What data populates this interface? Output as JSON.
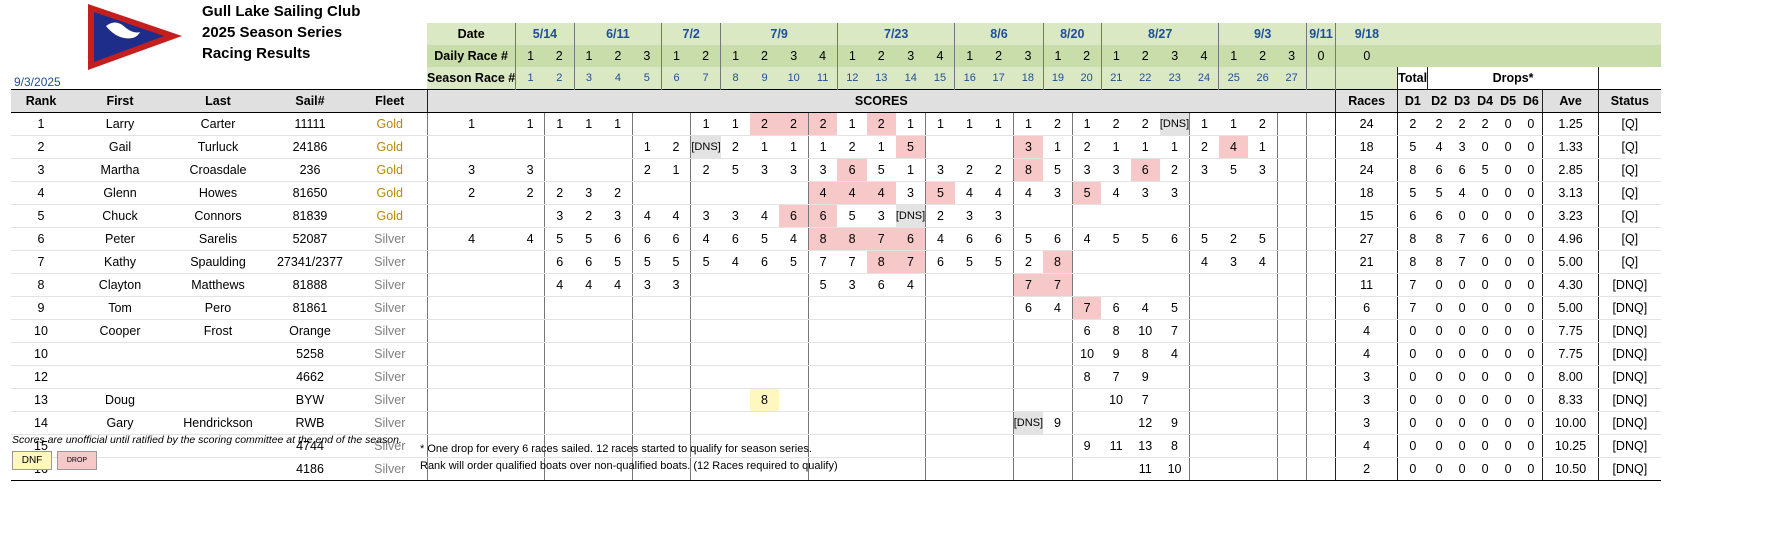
{
  "header": {
    "club_name": "Gull Lake Sailing Club",
    "series_title": "2025 Season Series",
    "subtitle": "Racing Results",
    "as_of_date": "9/3/2025"
  },
  "colors": {
    "drop": "#f6c8c8",
    "dnf": "#fff6c0",
    "header_green": "#dbe8c4",
    "gold": "#b8860b",
    "silver": "#808080"
  },
  "schedule": {
    "date_label": "Date",
    "daily_race_label": "Daily Race #",
    "season_race_label": "Season Race #",
    "dates": [
      {
        "date": "5/14",
        "races": 2
      },
      {
        "date": "6/11",
        "races": 3
      },
      {
        "date": "7/2",
        "races": 2
      },
      {
        "date": "7/9",
        "races": 4
      },
      {
        "date": "7/23",
        "races": 4
      },
      {
        "date": "8/6",
        "races": 3
      },
      {
        "date": "8/20",
        "races": 2
      },
      {
        "date": "8/27",
        "races": 4
      },
      {
        "date": "9/3",
        "races": 3
      },
      {
        "date": "9/11",
        "races": 1,
        "daily_label": "0"
      },
      {
        "date": "9/18",
        "races": 1,
        "daily_label": "0"
      }
    ],
    "season_numbers": [
      "1",
      "2",
      "3",
      "4",
      "5",
      "6",
      "7",
      "8",
      "9",
      "10",
      "11",
      "12",
      "13",
      "14",
      "15",
      "16",
      "17",
      "18",
      "19",
      "20",
      "21",
      "22",
      "23",
      "24",
      "25",
      "26",
      "27"
    ]
  },
  "columns": {
    "rank": "Rank",
    "first": "First",
    "last": "Last",
    "sail": "Sail#",
    "fleet": "Fleet",
    "scores": "SCORES",
    "total_top": "Total",
    "total_bottom": "Races",
    "drops_title": "Drops*",
    "drops": [
      "D1",
      "D2",
      "D3",
      "D4",
      "D5",
      "D6"
    ],
    "ave": "Ave",
    "status": "Status"
  },
  "rows": [
    {
      "rank": "1",
      "first": "Larry",
      "last": "Carter",
      "sail": "11111",
      "fleet": "Gold",
      "races": [
        "1",
        "1",
        "1",
        "1",
        "1",
        "",
        "",
        "1",
        "1",
        "2",
        "2",
        "2",
        "1",
        "2",
        "1",
        "1",
        "1",
        "1",
        "1",
        "2",
        "1",
        "2",
        "2",
        "[DNS]",
        "1",
        "1",
        "2",
        "",
        ""
      ],
      "drops_idx": [
        9,
        10,
        11,
        13
      ],
      "dns_idx": [
        23
      ],
      "dnf_idx": [],
      "total": "24",
      "d": [
        "2",
        "2",
        "2",
        "2",
        "0",
        "0"
      ],
      "ave": "1.25",
      "status": "[Q]"
    },
    {
      "rank": "2",
      "first": "Gail",
      "last": "Turluck",
      "sail": "24186",
      "fleet": "Gold",
      "races": [
        "",
        "",
        "",
        "",
        "",
        "1",
        "2",
        "[DNS]",
        "2",
        "1",
        "1",
        "1",
        "2",
        "1",
        "5",
        "",
        "",
        "",
        "3",
        "1",
        "2",
        "1",
        "1",
        "1",
        "2",
        "4",
        "1",
        "",
        ""
      ],
      "drops_idx": [
        14,
        18,
        25
      ],
      "dns_idx": [
        7
      ],
      "dnf_idx": [],
      "total": "18",
      "d": [
        "5",
        "4",
        "3",
        "0",
        "0",
        "0"
      ],
      "ave": "1.33",
      "status": "[Q]"
    },
    {
      "rank": "3",
      "first": "Martha",
      "last": "Croasdale",
      "sail": "236",
      "fleet": "Gold",
      "races": [
        "3",
        "3",
        "",
        "",
        "",
        "2",
        "1",
        "2",
        "5",
        "3",
        "3",
        "3",
        "6",
        "5",
        "1",
        "3",
        "2",
        "2",
        "8",
        "5",
        "3",
        "3",
        "6",
        "2",
        "3",
        "5",
        "3",
        "",
        ""
      ],
      "drops_idx": [
        12,
        18,
        22
      ],
      "dns_idx": [],
      "dnf_idx": [],
      "total": "24",
      "d": [
        "8",
        "6",
        "6",
        "5",
        "0",
        "0"
      ],
      "ave": "2.85",
      "status": "[Q]"
    },
    {
      "rank": "4",
      "first": "Glenn",
      "last": "Howes",
      "sail": "81650",
      "fleet": "Gold",
      "races": [
        "2",
        "2",
        "2",
        "3",
        "2",
        "",
        "",
        "",
        "",
        "",
        "",
        "4",
        "4",
        "4",
        "3",
        "5",
        "4",
        "4",
        "4",
        "3",
        "5",
        "4",
        "3",
        "3",
        "",
        "",
        "",
        "",
        ""
      ],
      "drops_idx": [
        11,
        12,
        13,
        15,
        20
      ],
      "dns_idx": [],
      "dnf_idx": [],
      "total": "18",
      "d": [
        "5",
        "5",
        "4",
        "0",
        "0",
        "0"
      ],
      "ave": "3.13",
      "status": "[Q]"
    },
    {
      "rank": "5",
      "first": "Chuck",
      "last": "Connors",
      "sail": "81839",
      "fleet": "Gold",
      "races": [
        "",
        "",
        "3",
        "2",
        "3",
        "4",
        "4",
        "3",
        "3",
        "4",
        "6",
        "6",
        "5",
        "3",
        "[DNS]",
        "2",
        "3",
        "3",
        "",
        "",
        "",
        "",
        "",
        "",
        "",
        "",
        "",
        "",
        ""
      ],
      "drops_idx": [
        10,
        11
      ],
      "dns_idx": [
        14
      ],
      "dnf_idx": [],
      "total": "15",
      "d": [
        "6",
        "6",
        "0",
        "0",
        "0",
        "0"
      ],
      "ave": "3.23",
      "status": "[Q]"
    },
    {
      "rank": "6",
      "first": "Peter",
      "last": "Sarelis",
      "sail": "52087",
      "fleet": "Silver",
      "races": [
        "4",
        "4",
        "5",
        "5",
        "6",
        "6",
        "6",
        "4",
        "6",
        "5",
        "4",
        "8",
        "8",
        "7",
        "6",
        "4",
        "6",
        "6",
        "5",
        "6",
        "4",
        "5",
        "5",
        "6",
        "5",
        "2",
        "5",
        "",
        ""
      ],
      "drops_idx": [
        11,
        12,
        13,
        14
      ],
      "dns_idx": [],
      "dnf_idx": [],
      "total": "27",
      "d": [
        "8",
        "8",
        "7",
        "6",
        "0",
        "0"
      ],
      "ave": "4.96",
      "status": "[Q]"
    },
    {
      "rank": "7",
      "first": "Kathy",
      "last": "Spaulding",
      "sail": "27341/2377",
      "fleet": "Silver",
      "races": [
        "",
        "",
        "6",
        "6",
        "5",
        "5",
        "5",
        "5",
        "4",
        "6",
        "5",
        "7",
        "7",
        "8",
        "7",
        "6",
        "5",
        "5",
        "2",
        "8",
        "",
        "",
        "",
        "",
        "4",
        "3",
        "4",
        "",
        ""
      ],
      "drops_idx": [
        13,
        14,
        19
      ],
      "dns_idx": [],
      "dnf_idx": [],
      "total": "21",
      "d": [
        "8",
        "8",
        "7",
        "0",
        "0",
        "0"
      ],
      "ave": "5.00",
      "status": "[Q]"
    },
    {
      "rank": "8",
      "first": "Clayton",
      "last": "Matthews",
      "sail": "81888",
      "fleet": "Silver",
      "races": [
        "",
        "",
        "4",
        "4",
        "4",
        "3",
        "3",
        "",
        "",
        "",
        "",
        "5",
        "3",
        "6",
        "4",
        "",
        "",
        "",
        "7",
        "7",
        "",
        "",
        "",
        "",
        "",
        "",
        "",
        "",
        ""
      ],
      "drops_idx": [
        18,
        19
      ],
      "dns_idx": [],
      "dnf_idx": [],
      "total": "11",
      "d": [
        "7",
        "0",
        "0",
        "0",
        "0",
        "0"
      ],
      "ave": "4.30",
      "status": "[DNQ]"
    },
    {
      "rank": "9",
      "first": "Tom",
      "last": "Pero",
      "sail": "81861",
      "fleet": "Silver",
      "races": [
        "",
        "",
        "",
        "",
        "",
        "",
        "",
        "",
        "",
        "",
        "",
        "",
        "",
        "",
        "",
        "",
        "",
        "",
        "6",
        "4",
        "7",
        "6",
        "4",
        "5",
        "",
        "",
        "",
        "",
        ""
      ],
      "drops_idx": [
        20
      ],
      "dns_idx": [],
      "dnf_idx": [],
      "total": "6",
      "d": [
        "7",
        "0",
        "0",
        "0",
        "0",
        "0"
      ],
      "ave": "5.00",
      "status": "[DNQ]"
    },
    {
      "rank": "10",
      "first": "Cooper",
      "last": "Frost",
      "sail": "Orange",
      "fleet": "Silver",
      "races": [
        "",
        "",
        "",
        "",
        "",
        "",
        "",
        "",
        "",
        "",
        "",
        "",
        "",
        "",
        "",
        "",
        "",
        "",
        "",
        "",
        "6",
        "8",
        "10",
        "7",
        "",
        "",
        "",
        "",
        ""
      ],
      "drops_idx": [],
      "dns_idx": [],
      "dnf_idx": [],
      "total": "4",
      "d": [
        "0",
        "0",
        "0",
        "0",
        "0",
        "0"
      ],
      "ave": "7.75",
      "status": "[DNQ]"
    },
    {
      "rank": "10",
      "first": "",
      "last": "",
      "sail": "5258",
      "fleet": "Silver",
      "races": [
        "",
        "",
        "",
        "",
        "",
        "",
        "",
        "",
        "",
        "",
        "",
        "",
        "",
        "",
        "",
        "",
        "",
        "",
        "",
        "",
        "10",
        "9",
        "8",
        "4",
        "",
        "",
        "",
        "",
        ""
      ],
      "drops_idx": [],
      "dns_idx": [],
      "dnf_idx": [],
      "total": "4",
      "d": [
        "0",
        "0",
        "0",
        "0",
        "0",
        "0"
      ],
      "ave": "7.75",
      "status": "[DNQ]"
    },
    {
      "rank": "12",
      "first": "",
      "last": "",
      "sail": "4662",
      "fleet": "Silver",
      "races": [
        "",
        "",
        "",
        "",
        "",
        "",
        "",
        "",
        "",
        "",
        "",
        "",
        "",
        "",
        "",
        "",
        "",
        "",
        "",
        "",
        "8",
        "7",
        "9",
        "",
        "",
        "",
        "",
        "",
        ""
      ],
      "drops_idx": [],
      "dns_idx": [],
      "dnf_idx": [],
      "total": "3",
      "d": [
        "0",
        "0",
        "0",
        "0",
        "0",
        "0"
      ],
      "ave": "8.00",
      "status": "[DNQ]"
    },
    {
      "rank": "13",
      "first": "Doug",
      "last": "",
      "sail": "BYW",
      "fleet": "Silver",
      "races": [
        "",
        "",
        "",
        "",
        "",
        "",
        "",
        "",
        "",
        "8",
        "",
        "",
        "",
        "",
        "",
        "",
        "",
        "",
        "",
        "",
        "",
        "10",
        "7",
        "",
        "",
        "",
        "",
        "",
        ""
      ],
      "drops_idx": [],
      "dns_idx": [],
      "dnf_idx": [
        9
      ],
      "total": "3",
      "d": [
        "0",
        "0",
        "0",
        "0",
        "0",
        "0"
      ],
      "ave": "8.33",
      "status": "[DNQ]"
    },
    {
      "rank": "14",
      "first": "Gary",
      "last": "Hendrickson",
      "sail": "RWB",
      "fleet": "Silver",
      "races": [
        "",
        "",
        "",
        "",
        "",
        "",
        "",
        "",
        "",
        "",
        "",
        "",
        "",
        "",
        "",
        "",
        "",
        "",
        "[DNS]",
        "9",
        "",
        "",
        "12",
        "9",
        "",
        "",
        "",
        "",
        ""
      ],
      "drops_idx": [],
      "dns_idx": [
        18
      ],
      "dnf_idx": [],
      "total": "3",
      "d": [
        "0",
        "0",
        "0",
        "0",
        "0",
        "0"
      ],
      "ave": "10.00",
      "status": "[DNQ]"
    },
    {
      "rank": "15",
      "first": "",
      "last": "",
      "sail": "4744",
      "fleet": "Silver",
      "races": [
        "",
        "",
        "",
        "",
        "",
        "",
        "",
        "",
        "",
        "",
        "",
        "",
        "",
        "",
        "",
        "",
        "",
        "",
        "",
        "",
        "9",
        "11",
        "13",
        "8",
        "",
        "",
        "",
        "",
        ""
      ],
      "drops_idx": [],
      "dns_idx": [],
      "dnf_idx": [],
      "total": "4",
      "d": [
        "0",
        "0",
        "0",
        "0",
        "0",
        "0"
      ],
      "ave": "10.25",
      "status": "[DNQ]"
    },
    {
      "rank": "16",
      "first": "",
      "last": "",
      "sail": "4186",
      "fleet": "Silver",
      "races": [
        "",
        "",
        "",
        "",
        "",
        "",
        "",
        "",
        "",
        "",
        "",
        "",
        "",
        "",
        "",
        "",
        "",
        "",
        "",
        "",
        "",
        "",
        "11",
        "10",
        "",
        "",
        "",
        "",
        ""
      ],
      "drops_idx": [],
      "dns_idx": [],
      "dnf_idx": [],
      "total": "2",
      "d": [
        "0",
        "0",
        "0",
        "0",
        "0",
        "0"
      ],
      "ave": "10.50",
      "status": "[DNQ]"
    }
  ],
  "footnotes": {
    "unofficial": "Scores are unofficial until ratified by the scoring committee at the end of the season.",
    "drop_rule": "* One drop for every 6 races sailed. 12 races started to qualify for season series.",
    "rank_rule": "Rank will order qualified boats over non-qualified boats. (12 Races required to qualify)",
    "legend_dnf": "DNF",
    "legend_drop": "DROP"
  }
}
